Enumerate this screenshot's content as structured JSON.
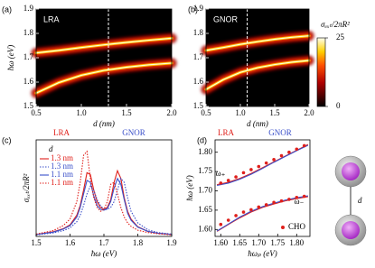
{
  "chart_data": [
    {
      "type": "heatmap",
      "panel_label": "(a)",
      "title": "LRA",
      "x_label": "d (nm)",
      "y_label": "ħω (eV)",
      "xlim": [
        0.5,
        2.0
      ],
      "xticks": [
        0.5,
        {
          "value": 1,
          "label": "1.0"
        },
        1.5,
        {
          "value": 2,
          "label": "2.0"
        }
      ],
      "ylim": [
        1.5,
        1.9
      ],
      "yticks": [
        1.5,
        1.6,
        1.7,
        1.8,
        1.9
      ],
      "vline": 1.3,
      "x": [
        0.5,
        0.75,
        1.0,
        1.25,
        1.5,
        1.75,
        2.0
      ],
      "series": [
        {
          "values": [
            1.72,
            1.73,
            1.742,
            1.753,
            1.763,
            1.772,
            1.78
          ]
        },
        {
          "values": [
            1.555,
            1.598,
            1.628,
            1.648,
            1.661,
            1.671,
            1.678
          ]
        }
      ]
    },
    {
      "type": "heatmap",
      "panel_label": "(b)",
      "title": "GNOR",
      "x_label": "d (nm)",
      "xlim": [
        0.5,
        2.0
      ],
      "xticks": [
        0.5,
        {
          "value": 1,
          "label": "1.0"
        },
        1.5,
        {
          "value": 2,
          "label": "2.0"
        }
      ],
      "ylim": [
        1.5,
        1.9
      ],
      "yticks": [
        1.5,
        1.6,
        1.7,
        1.8,
        1.9
      ],
      "vline": 1.1,
      "x": [
        0.5,
        0.75,
        1.0,
        1.25,
        1.5,
        1.75,
        2.0
      ],
      "series": [
        {
          "values": [
            1.73,
            1.742,
            1.755,
            1.766,
            1.776,
            1.784,
            1.79
          ]
        },
        {
          "values": [
            1.57,
            1.61,
            1.64,
            1.659,
            1.672,
            1.682,
            1.689
          ]
        }
      ],
      "colorbar": {
        "label": "σₑₓₜ/2πR²",
        "zlim": [
          0,
          25
        ],
        "zticks": [
          0,
          25
        ]
      }
    },
    {
      "type": "line",
      "panel_label": "(c)",
      "x_label": "ħω (eV)",
      "y_label": "σₑₓₜ/2πR²",
      "xlim": [
        1.5,
        1.9
      ],
      "xticks": [
        1.5,
        1.6,
        1.7,
        1.8,
        1.9
      ],
      "ylim": [
        0,
        25
      ],
      "annotations": [
        {
          "text": "LRA",
          "color": "#e0201b"
        },
        {
          "text": "GNOR",
          "color": "#3a4fc9"
        }
      ],
      "legend_title": "d",
      "legend": "upper left",
      "x": [
        1.5,
        1.55,
        1.58,
        1.6,
        1.62,
        1.63,
        1.64,
        1.65,
        1.66,
        1.67,
        1.68,
        1.69,
        1.7,
        1.71,
        1.72,
        1.73,
        1.74,
        1.75,
        1.76,
        1.77,
        1.78,
        1.8,
        1.83,
        1.86,
        1.9
      ],
      "series": [
        {
          "name": "1.3 nm",
          "color": "#e0201b",
          "linestyle": "solid",
          "values": [
            0.5,
            1.2,
            2,
            3,
            5.5,
            8,
            12,
            16.5,
            16,
            12,
            9,
            7.5,
            7,
            7.5,
            9.5,
            14,
            17,
            15,
            10,
            6.5,
            4.5,
            2.5,
            1.3,
            0.8,
            0.5
          ]
        },
        {
          "name": "1.3 nm",
          "color": "#3a4fc9",
          "linestyle": "dotted",
          "values": [
            0.4,
            0.9,
            1.5,
            2.2,
            3.8,
            5.5,
            8,
            11,
            13,
            12,
            9.5,
            8,
            7,
            7,
            7.5,
            9,
            12,
            15,
            14,
            10,
            6.5,
            3.5,
            1.7,
            1,
            0.6
          ]
        },
        {
          "name": "1.1 nm",
          "color": "#3a4fc9",
          "linestyle": "solid",
          "values": [
            0.5,
            1.1,
            1.9,
            2.8,
            5,
            7.5,
            11,
            14.5,
            14,
            10.5,
            8,
            7,
            6.8,
            7.2,
            9,
            12.5,
            15,
            13.5,
            9.5,
            6,
            4.2,
            2.4,
            1.3,
            0.8,
            0.5
          ]
        },
        {
          "name": "1.1 nm",
          "color": "#e0201b",
          "linestyle": "dotted",
          "values": [
            0.6,
            1.5,
            2.8,
            4.5,
            9,
            14,
            21,
            22,
            15,
            10,
            7.5,
            6.5,
            7,
            9,
            13.5,
            14,
            11,
            7.5,
            5,
            3.5,
            2.6,
            1.6,
            1,
            0.7,
            0.4
          ]
        }
      ]
    },
    {
      "type": "line",
      "panel_label": "(d)",
      "x_label": "ħωₚ (eV)",
      "y_label": "ħω (eV)",
      "xlim": [
        1.585,
        1.835
      ],
      "xticks": [
        {
          "value": 1.6,
          "label": "1.60"
        },
        {
          "value": 1.65,
          "label": "1.65"
        },
        {
          "value": 1.7,
          "label": "1.70"
        },
        {
          "value": 1.75,
          "label": "1.75"
        },
        {
          "value": 1.8,
          "label": "1.80"
        }
      ],
      "ylim": [
        1.582,
        1.832
      ],
      "yticks": [
        {
          "value": 1.6,
          "label": "1.60"
        },
        {
          "value": 1.65,
          "label": "1.65"
        },
        {
          "value": 1.7,
          "label": "1.70"
        },
        {
          "value": 1.75,
          "label": "1.75"
        },
        {
          "value": 1.8,
          "label": "1.80"
        }
      ],
      "annotations": [
        {
          "text": "LRA",
          "color": "#e0201b"
        },
        {
          "text": "GNOR",
          "color": "#3a4fc9"
        },
        {
          "text": "ω₊",
          "color": "#000000"
        },
        {
          "text": "ω₋",
          "color": "#000000"
        }
      ],
      "legend": "lower right",
      "x": [
        1.59,
        1.62,
        1.65,
        1.68,
        1.71,
        1.74,
        1.77,
        1.8,
        1.83
      ],
      "series": [
        {
          "color": "#e0201b",
          "linestyle": "solid",
          "values": [
            1.716,
            1.722,
            1.732,
            1.745,
            1.76,
            1.775,
            1.79,
            1.805,
            1.82
          ]
        },
        {
          "color": "#e0201b",
          "linestyle": "solid",
          "values": [
            1.595,
            1.613,
            1.63,
            1.645,
            1.657,
            1.666,
            1.674,
            1.68,
            1.685
          ]
        },
        {
          "color": "#3a4fc9",
          "linestyle": "solid",
          "values": [
            1.714,
            1.72,
            1.73,
            1.743,
            1.758,
            1.774,
            1.789,
            1.804,
            1.818
          ]
        },
        {
          "color": "#3a4fc9",
          "linestyle": "solid",
          "values": [
            1.596,
            1.614,
            1.632,
            1.647,
            1.659,
            1.668,
            1.676,
            1.682,
            1.687
          ]
        },
        {
          "name": "CHO",
          "color": "#e0201b",
          "marker": "circle",
          "x": [
            1.6,
            1.62,
            1.64,
            1.66,
            1.68,
            1.7,
            1.72,
            1.74,
            1.76,
            1.78,
            1.8,
            1.82,
            1.6,
            1.62,
            1.64,
            1.66,
            1.68,
            1.7,
            1.72,
            1.74,
            1.76,
            1.78,
            1.8,
            1.82
          ],
          "values": [
            1.72,
            1.727,
            1.736,
            1.747,
            1.755,
            1.763,
            1.772,
            1.781,
            1.791,
            1.8,
            1.808,
            1.817,
            1.613,
            1.624,
            1.636,
            1.645,
            1.651,
            1.658,
            1.664,
            1.67,
            1.674,
            1.678,
            1.683,
            1.686
          ]
        }
      ]
    }
  ],
  "illustration": {
    "label": "d"
  }
}
